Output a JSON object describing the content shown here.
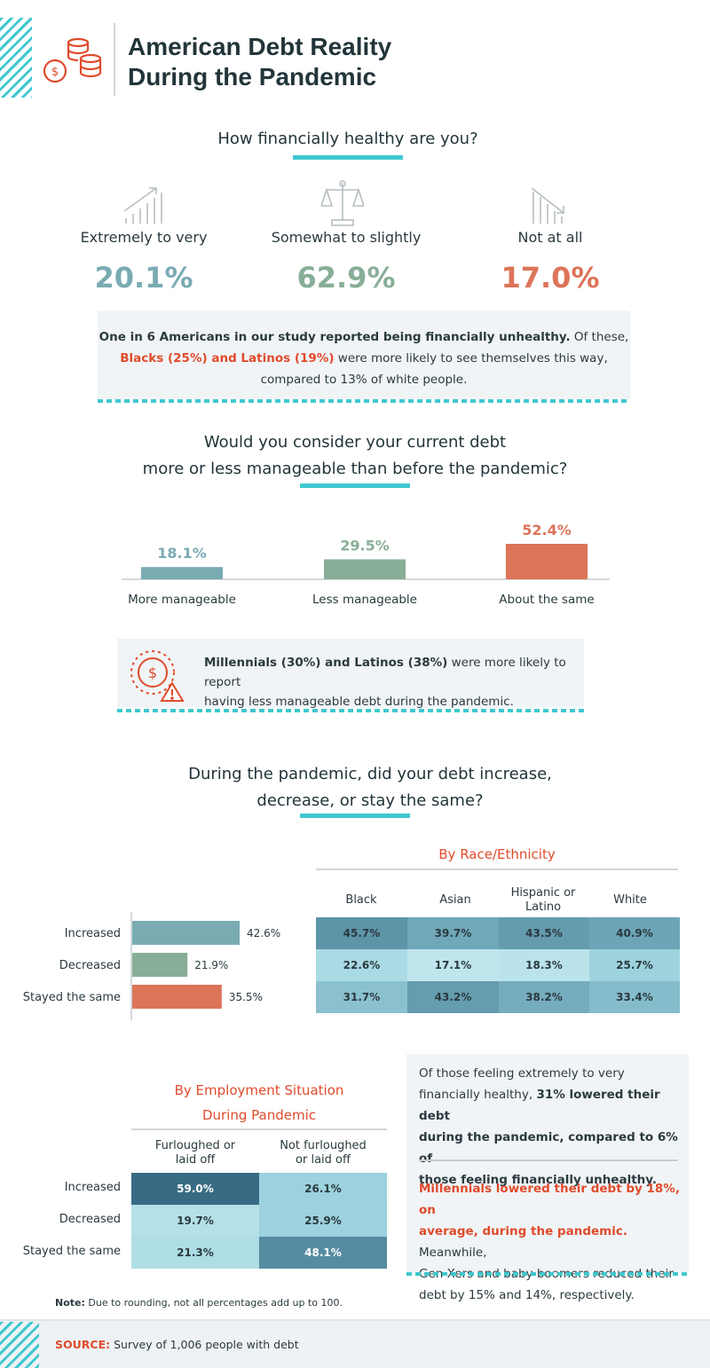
{
  "header": {
    "title_line1": "American Debt Reality",
    "title_line2": "During the Pandemic"
  },
  "colors": {
    "accent": "#3fc8cf",
    "teal": "#7aabb3",
    "green": "#88ae97",
    "orange": "#dc7458",
    "red_text": "#e04b2c"
  },
  "section1": {
    "question": "How financially healthy are you?",
    "items": [
      {
        "label": "Extremely to very",
        "value": "20.1%",
        "icon": "rising-bars-icon"
      },
      {
        "label": "Somewhat to slightly",
        "value": "62.9%",
        "icon": "scale-icon"
      },
      {
        "label": "Not at all",
        "value": "17.0%",
        "icon": "falling-bars-icon"
      }
    ],
    "note_bold": "One in 6 Americans in our study reported being financially unhealthy.",
    "note_mid": " Of these,",
    "note_red": "Blacks (25%) and Latinos (19%)",
    "note_tail": " were more likely to see themselves this way,",
    "note_last": "compared to 13% of white people."
  },
  "section2": {
    "question_line1": "Would you consider your current debt",
    "question_line2": "more or less manageable than before the pandemic?",
    "note_bold": "Millennials (30%) and Latinos (38%)",
    "note_tail": " were more likely to report",
    "note_last": "having less manageable debt during the pandemic."
  },
  "section3": {
    "question_line1": "During the pandemic, did your debt increase,",
    "question_line2": "decrease, or stay the same?",
    "race_title": "By Race/Ethnicity",
    "race_columns": [
      "Black",
      "Asian",
      "Hispanic or Latino",
      "White"
    ],
    "race_rows": [
      {
        "label": "Increased",
        "values": [
          "45.7%",
          "39.7%",
          "43.5%",
          "40.9%"
        ]
      },
      {
        "label": "Decreased",
        "values": [
          "22.6%",
          "17.1%",
          "18.3%",
          "25.7%"
        ]
      },
      {
        "label": "Stayed the same",
        "values": [
          "31.7%",
          "43.2%",
          "38.2%",
          "33.4%"
        ]
      }
    ],
    "employment_title_line1": "By Employment Situation",
    "employment_title_line2": "During Pandemic",
    "employment_col1_line1": "Furloughed or",
    "employment_col1_line2": "laid off",
    "employment_col2_line1": "Not furloughed",
    "employment_col2_line2": "or laid off",
    "employment_rows": [
      {
        "label": "Increased",
        "values": [
          "59.0%",
          "26.1%"
        ]
      },
      {
        "label": "Decreased",
        "values": [
          "19.7%",
          "25.9%"
        ]
      },
      {
        "label": "Stayed the same",
        "values": [
          "21.3%",
          "48.1%"
        ]
      }
    ],
    "side_note1_a": "Of those feeling extremely to very",
    "side_note1_b": "financially healthy, ",
    "side_note1_bold1": "31% lowered their debt",
    "side_note1_bold2": "during the pandemic, compared to 6% of",
    "side_note1_bold3": "those feeling financially unhealthy.",
    "side_note2_red1": "Millennials lowered their debt by 18%, on",
    "side_note2_red2": "average, during the pandemic.",
    "side_note2_tail": " Meanwhile,",
    "side_note2_line3": "Gen Xers and baby boomers reduced their",
    "side_note2_line4": "debt by 15% and 14%, respectively."
  },
  "footer": {
    "note_label": "Note:",
    "note_text": " Due to rounding, not all percentages add up to 100.",
    "source_label": "SOURCE:",
    "source_text": " Survey of 1,006 people with debt"
  },
  "chart_data": [
    {
      "type": "bar",
      "categories": [
        "More manageable",
        "Less manageable",
        "About the same"
      ],
      "values": [
        18.1,
        29.5,
        52.4
      ],
      "value_labels": [
        "18.1%",
        "29.5%",
        "52.4%"
      ],
      "title": "",
      "xlabel": "",
      "ylabel": ""
    },
    {
      "type": "bar",
      "orientation": "horizontal",
      "categories": [
        "Increased",
        "Decreased",
        "Stayed the same"
      ],
      "values": [
        42.6,
        21.9,
        35.5
      ],
      "value_labels": [
        "42.6%",
        "21.9%",
        "35.5%"
      ],
      "title": "",
      "xlabel": "",
      "ylabel": ""
    }
  ]
}
